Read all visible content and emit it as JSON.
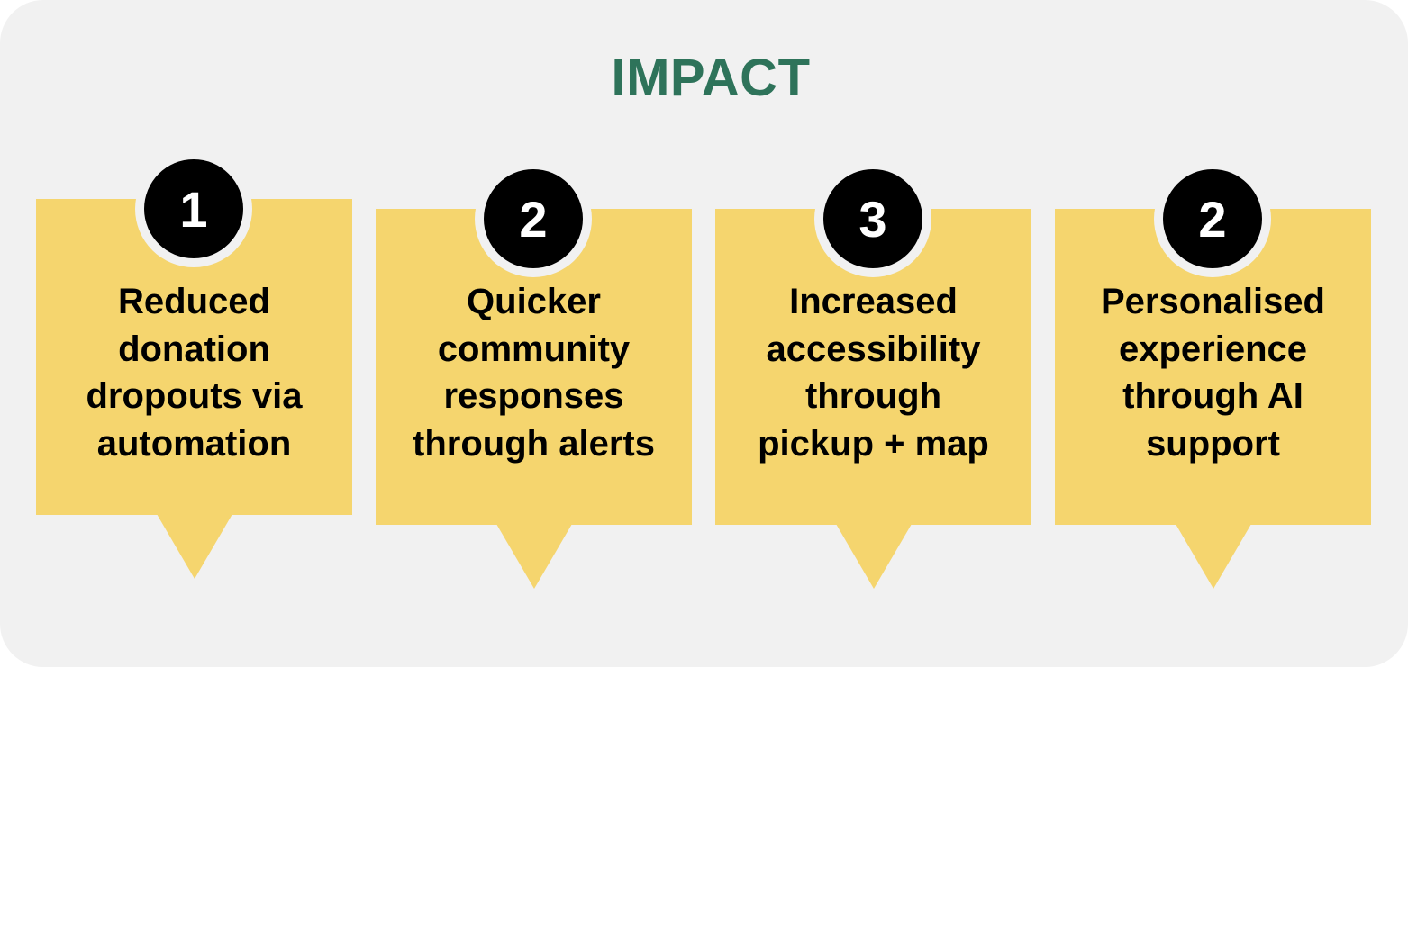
{
  "title": "IMPACT",
  "colors": {
    "title": "#2e735a",
    "card": "#f5d56e",
    "panel": "#f1f1f1",
    "badge": "#000000"
  },
  "cards": [
    {
      "number": "1",
      "text": "Reduced\ndonation\ndropouts via\nautomation"
    },
    {
      "number": "2",
      "text": "Quicker\ncommunity\nresponses\nthrough alerts"
    },
    {
      "number": "3",
      "text": "Increased\naccessibility\nthrough\npickup + map"
    },
    {
      "number": "2",
      "text": "Personalised\nexperience\nthrough AI\nsupport"
    }
  ]
}
